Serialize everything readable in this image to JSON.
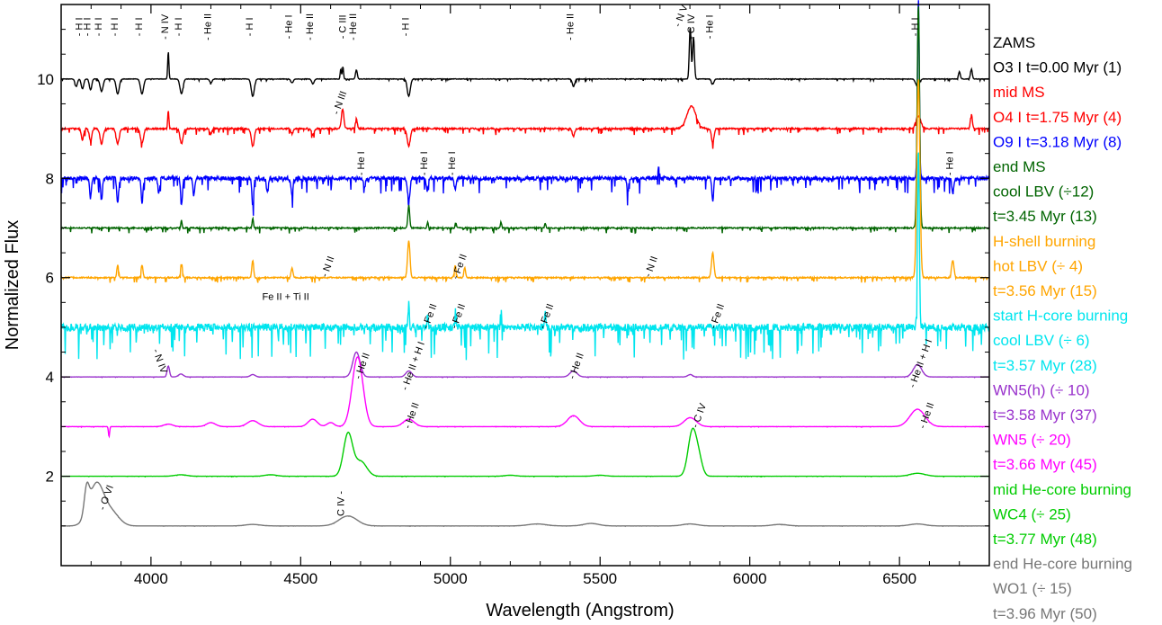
{
  "chart_data": {
    "type": "line",
    "title": "",
    "xlabel": "Wavelength (Angstrom)",
    "ylabel": "Normalized Flux",
    "xlim": [
      3700,
      6800
    ],
    "ylim": [
      0.2,
      11.5
    ],
    "xticks": [
      4000,
      4500,
      5000,
      5500,
      6000,
      6500
    ],
    "yticks": [
      2,
      4,
      6,
      8,
      10
    ],
    "grid": false,
    "legend": "right",
    "series": [
      {
        "name": "O3 I t=0.00 Myr (1)",
        "phase": "ZAMS",
        "model": "O3 I t=0.00 Myr (1)",
        "color": "#000000",
        "offset": 10,
        "noise": 0.02,
        "lines": [
          [
            3750,
            -0.15,
            4
          ],
          [
            3771,
            -0.2,
            4
          ],
          [
            3798,
            -0.22,
            4
          ],
          [
            3835,
            -0.25,
            5
          ],
          [
            3889,
            -0.3,
            5
          ],
          [
            3970,
            -0.3,
            5
          ],
          [
            4058,
            0.55,
            2
          ],
          [
            4102,
            -0.3,
            5
          ],
          [
            4200,
            -0.08,
            4
          ],
          [
            4340,
            -0.35,
            5
          ],
          [
            4471,
            -0.08,
            4
          ],
          [
            4541,
            -0.1,
            4
          ],
          [
            4634,
            0.2,
            2
          ],
          [
            4641,
            0.25,
            2
          ],
          [
            4686,
            0.18,
            3
          ],
          [
            4861,
            -0.35,
            5
          ],
          [
            5411,
            -0.15,
            4
          ],
          [
            5801,
            1.05,
            3
          ],
          [
            5812,
            0.85,
            3
          ],
          [
            5876,
            -0.1,
            4
          ],
          [
            6560,
            -0.15,
            6
          ],
          [
            6700,
            0.15,
            3
          ],
          [
            6740,
            0.2,
            3
          ]
        ]
      },
      {
        "name": "O4 I t=1.75 Myr (4)",
        "phase": "mid MS",
        "model": "O4 I  t=1.75 Myr (4)",
        "color": "#ff0000",
        "offset": 9,
        "noise": 0.06,
        "lines": [
          [
            3771,
            -0.22,
            4
          ],
          [
            3798,
            -0.25,
            4
          ],
          [
            3835,
            -0.3,
            5
          ],
          [
            3889,
            -0.3,
            5
          ],
          [
            3970,
            -0.3,
            5
          ],
          [
            4058,
            0.35,
            2
          ],
          [
            4102,
            -0.3,
            5
          ],
          [
            4200,
            -0.1,
            4
          ],
          [
            4340,
            -0.35,
            5
          ],
          [
            4471,
            -0.1,
            4
          ],
          [
            4541,
            -0.12,
            4
          ],
          [
            4640,
            0.4,
            4
          ],
          [
            4686,
            0.2,
            3
          ],
          [
            4861,
            -0.35,
            5
          ],
          [
            5411,
            -0.15,
            4
          ],
          [
            5805,
            0.45,
            15
          ],
          [
            5876,
            -0.3,
            4
          ],
          [
            6563,
            0.25,
            8
          ],
          [
            6740,
            0.3,
            3
          ]
        ]
      },
      {
        "name": "O9 I t=3.18 Myr (8)",
        "phase": "",
        "model": "O9 I   t=3.18 Myr (8)",
        "color": "#0000ff",
        "offset": 8,
        "noise": 0.15,
        "lines": [
          [
            3798,
            -0.4,
            3
          ],
          [
            3835,
            -0.45,
            3
          ],
          [
            3889,
            -0.5,
            3
          ],
          [
            3970,
            -0.5,
            3
          ],
          [
            4026,
            -0.3,
            3
          ],
          [
            4102,
            -0.55,
            3
          ],
          [
            4143,
            -0.35,
            3
          ],
          [
            4340,
            -0.55,
            3
          ],
          [
            4388,
            -0.25,
            3
          ],
          [
            4471,
            -0.35,
            3
          ],
          [
            4713,
            -0.2,
            3
          ],
          [
            4861,
            -0.45,
            4
          ],
          [
            4922,
            -0.25,
            3
          ],
          [
            5016,
            -0.25,
            3
          ],
          [
            5592,
            -0.25,
            3
          ],
          [
            5696,
            0.2,
            3
          ],
          [
            5876,
            -0.45,
            3
          ],
          [
            6563,
            3.6,
            3
          ],
          [
            6678,
            -0.3,
            3
          ]
        ]
      },
      {
        "name": "cool LBV (÷12) t=3.45 Myr (13)",
        "phase": "end MS",
        "model": "cool LBV (÷12)",
        "model2": "t=3.45 Myr (13)",
        "color": "#006400",
        "offset": 7,
        "noise": 0.05,
        "lines": [
          [
            4102,
            0.15,
            2
          ],
          [
            4340,
            0.2,
            2
          ],
          [
            4861,
            0.45,
            3
          ],
          [
            4924,
            0.12,
            2
          ],
          [
            5018,
            0.12,
            2
          ],
          [
            5169,
            0.12,
            2
          ],
          [
            5317,
            0.1,
            2
          ],
          [
            6563,
            4.5,
            4
          ]
        ]
      },
      {
        "name": "hot LBV (÷ 4) t=3.56 Myr (15)",
        "phase": "H-shell burning",
        "model": "hot LBV (÷ 4)",
        "model2": "t=3.56 Myr (15)",
        "color": "#ffa500",
        "offset": 6,
        "noise": 0.05,
        "lines": [
          [
            3889,
            0.25,
            3
          ],
          [
            3970,
            0.25,
            3
          ],
          [
            4102,
            0.3,
            3
          ],
          [
            4340,
            0.35,
            3
          ],
          [
            4471,
            0.2,
            3
          ],
          [
            4861,
            0.75,
            4
          ],
          [
            5016,
            0.25,
            3
          ],
          [
            5048,
            0.2,
            3
          ],
          [
            5876,
            0.5,
            4
          ],
          [
            6563,
            4.0,
            5
          ],
          [
            6678,
            0.35,
            4
          ]
        ]
      },
      {
        "name": "cool LBV (÷ 6) t=3.57 Myr (28)",
        "phase": "start H-core burning",
        "model": "cool LBV (÷ 6)",
        "model2": "t=3.57 Myr (28)",
        "color": "#00e5ee",
        "offset": 5,
        "noise": 0.3,
        "lines": [
          [
            4861,
            0.5,
            2
          ],
          [
            4924,
            0.3,
            2
          ],
          [
            5018,
            0.35,
            2
          ],
          [
            5169,
            0.35,
            2
          ],
          [
            5317,
            0.3,
            2
          ],
          [
            6563,
            3.6,
            3
          ]
        ]
      },
      {
        "name": "WN5(h) (÷ 10) t=3.58 Myr (37)",
        "phase": "",
        "model": "WN5(h) (÷ 10)",
        "model2": "t=3.58 Myr (37)",
        "color": "#9932cc",
        "offset": 4,
        "noise": 0.005,
        "lines": [
          [
            4058,
            0.22,
            4
          ],
          [
            4100,
            0.06,
            8
          ],
          [
            4340,
            0.05,
            8
          ],
          [
            4686,
            0.5,
            12
          ],
          [
            4861,
            0.12,
            10
          ],
          [
            5411,
            0.12,
            12
          ],
          [
            5801,
            0.05,
            8
          ],
          [
            6560,
            0.25,
            14
          ]
        ]
      },
      {
        "name": "WN5 (÷ 20) t=3.66 Myr (45)",
        "phase": "",
        "model": "WN5 (÷ 20)",
        "model2": "t=3.66 Myr (45)",
        "color": "#ff00ff",
        "offset": 3,
        "noise": 0.005,
        "lines": [
          [
            3860,
            -0.2,
            2
          ],
          [
            4058,
            0.05,
            15
          ],
          [
            4200,
            0.08,
            15
          ],
          [
            4340,
            0.12,
            18
          ],
          [
            4540,
            0.15,
            15
          ],
          [
            4600,
            0.08,
            12
          ],
          [
            4690,
            1.4,
            18
          ],
          [
            4861,
            0.15,
            18
          ],
          [
            5411,
            0.22,
            20
          ],
          [
            5801,
            0.18,
            20
          ],
          [
            6560,
            0.35,
            25
          ]
        ]
      },
      {
        "name": "WC4 (÷ 25) t=3.77 Myr (48)",
        "phase": "mid He-core burning",
        "model": "WC4 (÷ 25)",
        "model2": "t=3.77 Myr (48)",
        "color": "#00cc00",
        "offset": 2,
        "noise": 0.004,
        "lines": [
          [
            4100,
            0.03,
            20
          ],
          [
            4400,
            0.03,
            20
          ],
          [
            4658,
            0.85,
            15
          ],
          [
            4700,
            0.3,
            20
          ],
          [
            5200,
            0.02,
            20
          ],
          [
            5500,
            0.02,
            20
          ],
          [
            5808,
            0.9,
            14
          ],
          [
            5830,
            0.3,
            12
          ],
          [
            6560,
            0.06,
            25
          ]
        ]
      },
      {
        "name": "WO1 (÷ 15) t=3.96 Myr (50)",
        "phase": "end He-core burning",
        "model": "WO1 (÷ 15)",
        "model2": "t=3.96 Myr (50)",
        "color": "#777777",
        "offset": 1,
        "noise": 0.003,
        "lines": [
          [
            3785,
            0.5,
            8
          ],
          [
            3818,
            0.85,
            25
          ],
          [
            3870,
            0.25,
            25
          ],
          [
            4340,
            0.03,
            25
          ],
          [
            4658,
            0.2,
            30
          ],
          [
            5290,
            0.04,
            30
          ],
          [
            5470,
            0.05,
            25
          ],
          [
            5800,
            0.04,
            25
          ],
          [
            6100,
            0.03,
            25
          ],
          [
            6560,
            0.04,
            25
          ]
        ]
      }
    ],
    "annotations": [
      {
        "text": "- H I",
        "x": 3770,
        "y": 11.05,
        "rot": -90,
        "color": "#000000"
      },
      {
        "text": "- H I",
        "x": 3797,
        "y": 11.05,
        "rot": -90,
        "color": "#000000"
      },
      {
        "text": "- H I",
        "x": 3835,
        "y": 11.05,
        "rot": -90,
        "color": "#000000"
      },
      {
        "text": "- H I",
        "x": 3889,
        "y": 11.05,
        "rot": -90,
        "color": "#000000"
      },
      {
        "text": "- H I",
        "x": 3970,
        "y": 11.05,
        "rot": -90,
        "color": "#000000"
      },
      {
        "text": "- N IV",
        "x": 4058,
        "y": 11.05,
        "rot": -90,
        "color": "#000000"
      },
      {
        "text": "- H I",
        "x": 4102,
        "y": 11.05,
        "rot": -90,
        "color": "#000000"
      },
      {
        "text": "- He II",
        "x": 4200,
        "y": 11.05,
        "rot": -90,
        "color": "#000000"
      },
      {
        "text": "- H I",
        "x": 4340,
        "y": 11.05,
        "rot": -90,
        "color": "#000000"
      },
      {
        "text": "- He I",
        "x": 4471,
        "y": 11.05,
        "rot": -90,
        "color": "#000000"
      },
      {
        "text": "- He II",
        "x": 4541,
        "y": 11.05,
        "rot": -90,
        "color": "#000000"
      },
      {
        "text": "- C III",
        "x": 4650,
        "y": 11.05,
        "rot": -90,
        "color": "#000000"
      },
      {
        "text": "- He II",
        "x": 4686,
        "y": 11.05,
        "rot": -90,
        "color": "#000000"
      },
      {
        "text": "- H I",
        "x": 4861,
        "y": 11.05,
        "rot": -90,
        "color": "#000000"
      },
      {
        "text": "- He II",
        "x": 5411,
        "y": 11.05,
        "rot": -90,
        "color": "#000000"
      },
      {
        "text": "- C IV",
        "x": 5815,
        "y": 11.05,
        "rot": -90,
        "color": "#000000"
      },
      {
        "text": "- He I",
        "x": 5876,
        "y": 11.05,
        "rot": -90,
        "color": "#000000"
      },
      {
        "text": "- H I",
        "x": 6563,
        "y": 11.05,
        "rot": -90,
        "color": "#000000"
      },
      {
        "text": "- N V",
        "x": 5780,
        "y": 11.25,
        "rot": -70,
        "color": "#000000"
      },
      {
        "text": "- N III",
        "x": 4640,
        "y": 9.5,
        "rot": -70,
        "color": "#000000"
      },
      {
        "text": "- He I",
        "x": 4713,
        "y": 8.3,
        "rot": -90,
        "color": "#000000"
      },
      {
        "text": "- He I",
        "x": 4922,
        "y": 8.3,
        "rot": -90,
        "color": "#000000"
      },
      {
        "text": "- He I",
        "x": 5016,
        "y": 8.3,
        "rot": -90,
        "color": "#000000"
      },
      {
        "text": "- He I",
        "x": 6678,
        "y": 8.3,
        "rot": -90,
        "color": "#000000"
      },
      {
        "text": "- N II",
        "x": 4600,
        "y": 6.2,
        "rot": -70,
        "color": "#000000"
      },
      {
        "text": "- Fe II",
        "x": 5040,
        "y": 6.2,
        "rot": -70,
        "color": "#000000"
      },
      {
        "text": "- N II",
        "x": 5680,
        "y": 6.2,
        "rot": -70,
        "color": "#000000"
      },
      {
        "text": "Fe II + Ti II",
        "x": 4450,
        "y": 5.55,
        "rot": 0,
        "color": "#000000"
      },
      {
        "text": "- Fe II",
        "x": 4940,
        "y": 5.2,
        "rot": -70,
        "color": "#000000"
      },
      {
        "text": "- Fe II",
        "x": 5035,
        "y": 5.2,
        "rot": -70,
        "color": "#000000"
      },
      {
        "text": "- Fe II",
        "x": 5330,
        "y": 5.2,
        "rot": -70,
        "color": "#000000"
      },
      {
        "text": "- Fe II",
        "x": 5900,
        "y": 5.2,
        "rot": -70,
        "color": "#000000"
      },
      {
        "text": "- N IV",
        "x": 4020,
        "y": 4.3,
        "rot": 70,
        "color": "#000000"
      },
      {
        "text": "- He II",
        "x": 4715,
        "y": 4.2,
        "rot": -70,
        "color": "#000000"
      },
      {
        "text": "- He II + H I",
        "x": 4885,
        "y": 4.2,
        "rot": -70,
        "color": "#000000"
      },
      {
        "text": "- He II",
        "x": 5430,
        "y": 4.2,
        "rot": -70,
        "color": "#000000"
      },
      {
        "text": "- He II + H I",
        "x": 6580,
        "y": 4.25,
        "rot": -70,
        "color": "#000000"
      },
      {
        "text": "- He II",
        "x": 4880,
        "y": 3.2,
        "rot": -70,
        "color": "#000000"
      },
      {
        "text": "- C IV",
        "x": 5840,
        "y": 3.2,
        "rot": -70,
        "color": "#000000"
      },
      {
        "text": "- He II",
        "x": 6600,
        "y": 3.2,
        "rot": -70,
        "color": "#000000"
      },
      {
        "text": "- O VI",
        "x": 3860,
        "y": 1.55,
        "rot": -70,
        "color": "#000000"
      },
      {
        "text": "C IV -",
        "x": 4645,
        "y": 1.45,
        "rot": -90,
        "color": "#000000"
      }
    ]
  }
}
